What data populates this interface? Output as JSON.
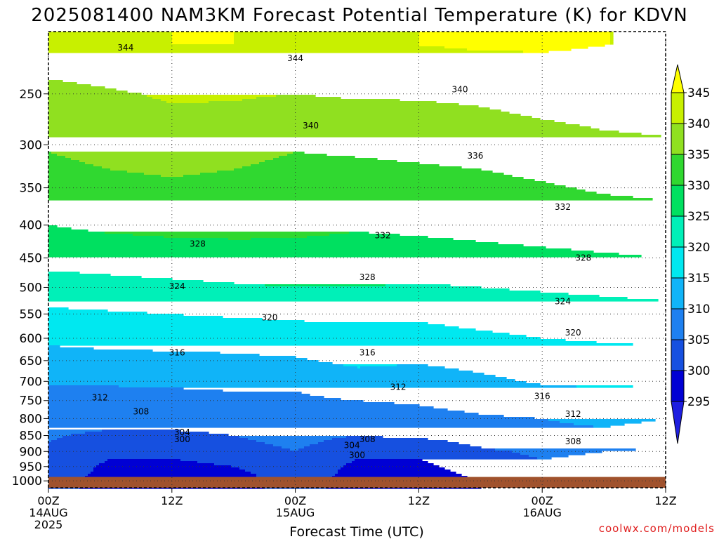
{
  "chart_data": {
    "type": "heatmap",
    "title": "2025081400 NAM3KM Forecast Potential Temperature (K) for KDVN",
    "xlabel": "Forecast Time (UTC)",
    "ylabel": "",
    "credit": "coolwx.com/models",
    "x_unit": "forecast hour",
    "xlim": [
      0,
      60
    ],
    "x_ticks": [
      {
        "hour": 0,
        "label": "00Z",
        "sub1": "14AUG",
        "sub2": "2025"
      },
      {
        "hour": 12,
        "label": "12Z",
        "sub1": "",
        "sub2": ""
      },
      {
        "hour": 24,
        "label": "00Z",
        "sub1": "15AUG",
        "sub2": ""
      },
      {
        "hour": 36,
        "label": "12Z",
        "sub1": "",
        "sub2": ""
      },
      {
        "hour": 48,
        "label": "00Z",
        "sub1": "16AUG",
        "sub2": ""
      },
      {
        "hour": 60,
        "label": "12Z",
        "sub1": "",
        "sub2": ""
      }
    ],
    "y_unit": "hPa",
    "y_scale": "log",
    "ylim": [
      1025,
      200
    ],
    "y_ticks": [
      250,
      300,
      350,
      400,
      450,
      500,
      550,
      600,
      650,
      700,
      750,
      800,
      850,
      900,
      950,
      1000
    ],
    "surface_pressure": 986,
    "colorbar": {
      "levels": [
        295,
        300,
        305,
        310,
        315,
        320,
        325,
        330,
        335,
        340,
        345
      ],
      "labels": [
        "295",
        "300",
        "305",
        "310",
        "315",
        "320",
        "325",
        "330",
        "335",
        "340",
        "345"
      ],
      "colors": [
        "#1e1ee0",
        "#0000d4",
        "#1650e0",
        "#1e80f0",
        "#10b4f8",
        "#00e8f0",
        "#00f0b8",
        "#00e060",
        "#30d830",
        "#90e020",
        "#c8f000",
        "#ffff00"
      ]
    },
    "pressure_levels": [
      1000,
      975,
      950,
      925,
      900,
      875,
      850,
      825,
      800,
      775,
      750,
      725,
      700,
      650,
      600,
      550,
      500,
      450,
      400,
      350,
      300,
      250,
      210
    ],
    "hours": [
      0,
      6,
      12,
      18,
      24,
      30,
      36,
      42,
      48,
      54,
      60
    ],
    "theta": [
      [
        301,
        299,
        298,
        299,
        301,
        299,
        298,
        300,
        302,
        301,
        300
      ],
      [
        302,
        299,
        298,
        299,
        302,
        299,
        298,
        301,
        303,
        302,
        301
      ],
      [
        303,
        299,
        299,
        300,
        303,
        299,
        299,
        302,
        304,
        303,
        302
      ],
      [
        303.5,
        300,
        300,
        301,
        304,
        300,
        300,
        303,
        305,
        304,
        303
      ],
      [
        304,
        301,
        301,
        302,
        305,
        301,
        301,
        304,
        306,
        305,
        304
      ],
      [
        305,
        302,
        303,
        304,
        306,
        303,
        303,
        306,
        308,
        307,
        306
      ],
      [
        305.5,
        304,
        304,
        305,
        306.5,
        305,
        306,
        307,
        308,
        309,
        307
      ],
      [
        306,
        305.5,
        305.5,
        306,
        307,
        307,
        307.5,
        308.5,
        309.5,
        310,
        309
      ],
      [
        306.5,
        306.5,
        306.5,
        307,
        308,
        308,
        308.5,
        309.5,
        310,
        311,
        310
      ],
      [
        307,
        307,
        307.5,
        308,
        308.5,
        309,
        309.5,
        310.5,
        311,
        312,
        311.5
      ],
      [
        308,
        308,
        308.5,
        309,
        309.5,
        310,
        310.5,
        311.5,
        313,
        313,
        312.5
      ],
      [
        309,
        309,
        309.5,
        310,
        310,
        311,
        311.5,
        312.5,
        314,
        314.5,
        314
      ],
      [
        310.5,
        311,
        311,
        311.5,
        311.5,
        313,
        312.5,
        314,
        315.5,
        316,
        315.5
      ],
      [
        313,
        313.5,
        313.5,
        314,
        314.5,
        316,
        315.5,
        316.5,
        317.5,
        318,
        318
      ],
      [
        316,
        316.5,
        317,
        317,
        317.5,
        318,
        318,
        319,
        320,
        320.5,
        321
      ],
      [
        319,
        319.5,
        320,
        320.5,
        321,
        321,
        321,
        322,
        322.5,
        323,
        323.5
      ],
      [
        323,
        323.5,
        324,
        324.5,
        325,
        325,
        324.5,
        325,
        325.5,
        326,
        326.5
      ],
      [
        326.5,
        327,
        327.5,
        328,
        328.5,
        328,
        328,
        328.5,
        329,
        329.5,
        330
      ],
      [
        330,
        331,
        331.5,
        331.5,
        331,
        330.5,
        331,
        331.5,
        332,
        332.5,
        333
      ],
      [
        332.5,
        333.5,
        334,
        333.5,
        332.5,
        332.5,
        333,
        333.5,
        334.5,
        335.5,
        336
      ],
      [
        335.5,
        337,
        338,
        337,
        335.5,
        336,
        336.5,
        337,
        338,
        339,
        339.5
      ],
      [
        338.5,
        339.5,
        340.5,
        340.5,
        340,
        340.5,
        340.5,
        341,
        342,
        342.5,
        342.5
      ],
      [
        343.5,
        344,
        345,
        345,
        344.5,
        344.5,
        345,
        345.5,
        345.5,
        345,
        345
      ]
    ],
    "contour_labels": [
      {
        "text": "344",
        "hour": 7.5,
        "p": 212
      },
      {
        "text": "344",
        "hour": 24,
        "p": 220
      },
      {
        "text": "340",
        "hour": 40,
        "p": 246
      },
      {
        "text": "340",
        "hour": 25.5,
        "p": 280
      },
      {
        "text": "336",
        "hour": 41.5,
        "p": 312
      },
      {
        "text": "332",
        "hour": 50,
        "p": 375
      },
      {
        "text": "332",
        "hour": 32.5,
        "p": 415
      },
      {
        "text": "328",
        "hour": 14.5,
        "p": 428
      },
      {
        "text": "328",
        "hour": 52,
        "p": 450
      },
      {
        "text": "328",
        "hour": 31,
        "p": 482
      },
      {
        "text": "324",
        "hour": 12.5,
        "p": 498
      },
      {
        "text": "324",
        "hour": 50,
        "p": 526
      },
      {
        "text": "320",
        "hour": 21.5,
        "p": 557
      },
      {
        "text": "320",
        "hour": 51,
        "p": 588
      },
      {
        "text": "316",
        "hour": 12.5,
        "p": 632
      },
      {
        "text": "316",
        "hour": 31,
        "p": 632
      },
      {
        "text": "312",
        "hour": 34,
        "p": 715
      },
      {
        "text": "312",
        "hour": 5,
        "p": 742
      },
      {
        "text": "316",
        "hour": 48,
        "p": 738
      },
      {
        "text": "308",
        "hour": 9,
        "p": 780
      },
      {
        "text": "312",
        "hour": 51,
        "p": 787
      },
      {
        "text": "304",
        "hour": 13,
        "p": 840
      },
      {
        "text": "300",
        "hour": 13,
        "p": 862
      },
      {
        "text": "308",
        "hour": 31,
        "p": 862
      },
      {
        "text": "304",
        "hour": 29.5,
        "p": 880
      },
      {
        "text": "308",
        "hour": 51,
        "p": 868
      },
      {
        "text": "300",
        "hour": 30,
        "p": 912
      }
    ]
  }
}
